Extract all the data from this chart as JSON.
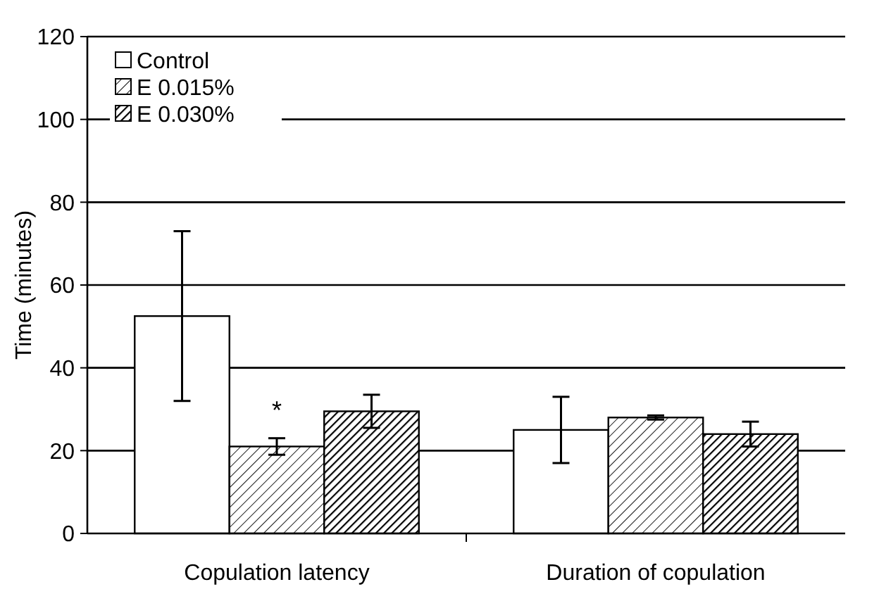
{
  "chart_data": {
    "type": "bar",
    "ylabel": "Time (minutes)",
    "categories": [
      "Copulation latency",
      "Duration of copulation"
    ],
    "series": [
      {
        "name": "Control",
        "color": "#ffffff",
        "values": [
          52.5,
          25
        ],
        "errors": [
          20.5,
          8
        ]
      },
      {
        "name": "E 0.015%",
        "color": "#000000",
        "values": [
          21,
          28
        ],
        "errors": [
          2,
          0.5
        ]
      },
      {
        "name": "E 0.030%",
        "color": "#000000",
        "values": [
          29.5,
          24
        ],
        "errors": [
          4,
          3
        ]
      }
    ],
    "ylim": [
      0,
      120
    ],
    "yticks": [
      0,
      20,
      40,
      60,
      80,
      100,
      120
    ],
    "grid": "y",
    "legend": "top left",
    "annotations": [
      "*"
    ]
  }
}
